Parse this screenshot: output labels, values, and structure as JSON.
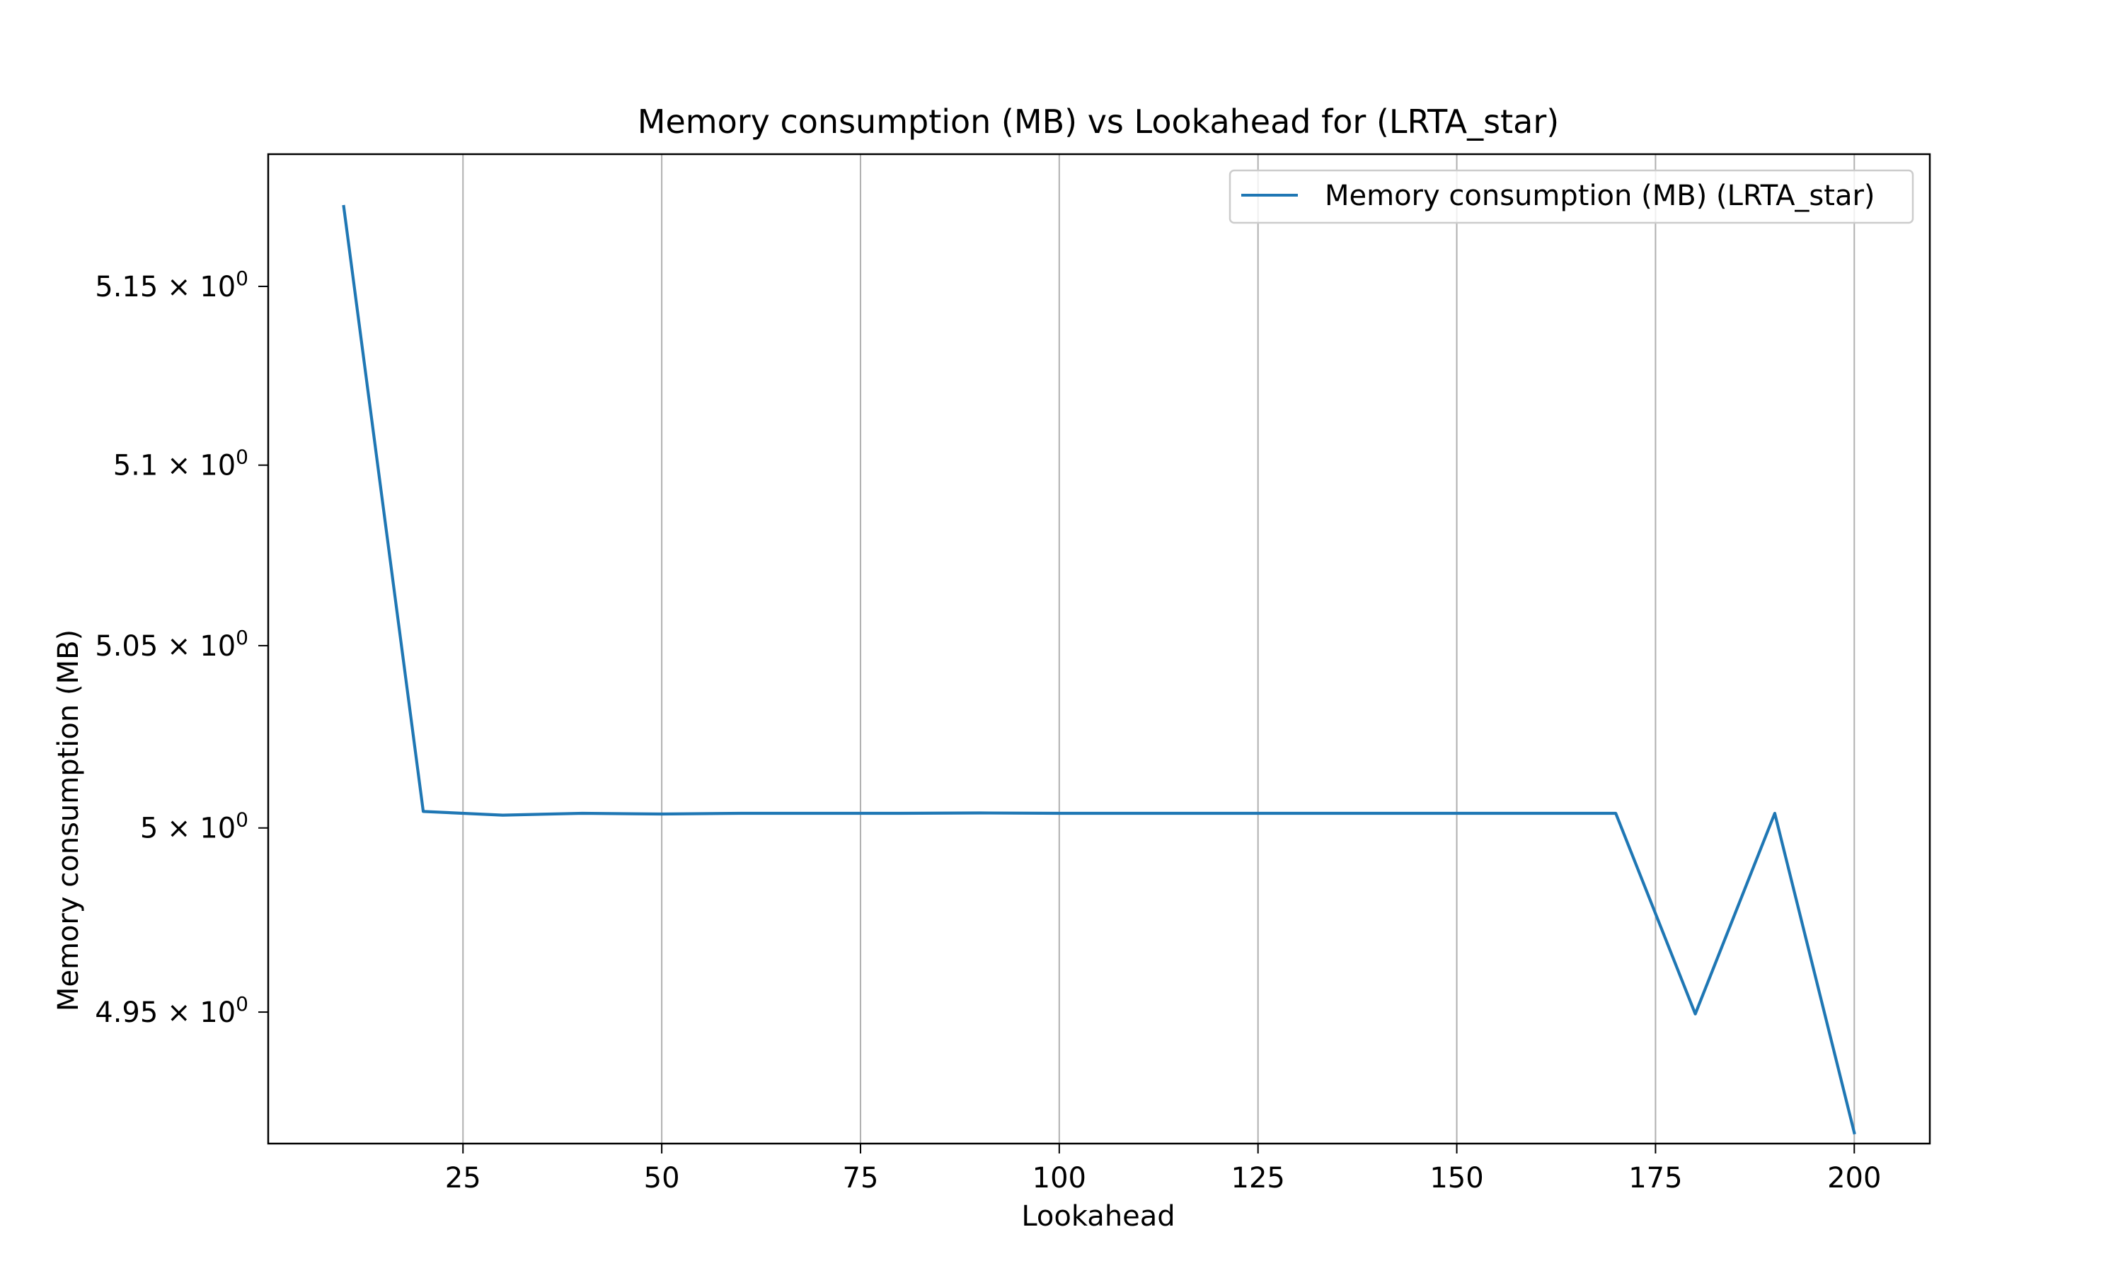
{
  "chart_data": {
    "type": "line",
    "title": "Memory consumption (MB) vs Lookahead for  (LRTA_star)",
    "xlabel": "Lookahead",
    "ylabel": "Memory consumption (MB)",
    "xlim": [
      0.5,
      209.5
    ],
    "ylim": [
      4.9146,
      5.1873
    ],
    "yscale": "log",
    "grid": "x-major",
    "legend_position": "upper-right",
    "x_ticks": [
      {
        "value": 25,
        "label": "25"
      },
      {
        "value": 50,
        "label": "50"
      },
      {
        "value": 75,
        "label": "75"
      },
      {
        "value": 100,
        "label": "100"
      },
      {
        "value": 125,
        "label": "125"
      },
      {
        "value": 150,
        "label": "150"
      },
      {
        "value": 175,
        "label": "175"
      },
      {
        "value": 200,
        "label": "200"
      }
    ],
    "y_ticks": [
      {
        "value": 4.95,
        "mantissa": "4.95",
        "base": "10",
        "exponent": "0"
      },
      {
        "value": 5.0,
        "mantissa": "5",
        "base": "10",
        "exponent": "0"
      },
      {
        "value": 5.05,
        "mantissa": "5.05",
        "base": "10",
        "exponent": "0"
      },
      {
        "value": 5.1,
        "mantissa": "5.1",
        "base": "10",
        "exponent": "0"
      },
      {
        "value": 5.15,
        "mantissa": "5.15",
        "base": "10",
        "exponent": "0"
      }
    ],
    "series": [
      {
        "name": "Memory consumption (MB) (LRTA_star)",
        "color": "#1f77b4",
        "x": [
          10,
          20,
          30,
          40,
          50,
          60,
          70,
          80,
          90,
          100,
          110,
          120,
          130,
          140,
          150,
          160,
          170,
          180,
          190,
          200
        ],
        "y": [
          5.1725,
          5.0045,
          5.0035,
          5.004,
          5.0038,
          5.004,
          5.004,
          5.004,
          5.0041,
          5.004,
          5.004,
          5.004,
          5.004,
          5.004,
          5.004,
          5.004,
          5.004,
          4.9495,
          5.004,
          4.9175
        ]
      }
    ]
  }
}
